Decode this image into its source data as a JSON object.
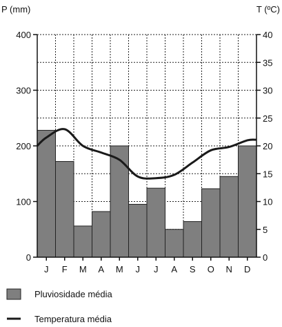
{
  "chart_data": {
    "type": "bar",
    "categories": [
      "J",
      "F",
      "M",
      "A",
      "M",
      "J",
      "J",
      "A",
      "S",
      "O",
      "N",
      "D"
    ],
    "series": [
      {
        "name": "Pluviosidade média",
        "type": "bar",
        "axis": "left",
        "values": [
          228,
          172,
          56,
          82,
          200,
          95,
          124,
          50,
          64,
          123,
          145,
          200
        ],
        "color": "#7f7f7f"
      },
      {
        "name": "Temperatura média",
        "type": "line",
        "axis": "right",
        "values": [
          21.5,
          23,
          20,
          18.8,
          17.5,
          14.5,
          14.2,
          14.8,
          17,
          19.2,
          19.8,
          21
        ],
        "color": "#1a1a1a"
      }
    ],
    "left_axis": {
      "label": "P (mm)",
      "ylim": [
        0,
        400
      ],
      "ticks": [
        0,
        100,
        200,
        300,
        400
      ]
    },
    "right_axis": {
      "label": "T (ºC)",
      "ylim": [
        0,
        40
      ],
      "ticks": [
        0,
        5,
        10,
        15,
        20,
        25,
        30,
        35,
        40
      ]
    },
    "grid": true,
    "legend": {
      "position": "bottom-left",
      "items": [
        {
          "label": "Pluviosidade média",
          "marker": "box"
        },
        {
          "label": "Temperatura média",
          "marker": "line"
        }
      ]
    }
  }
}
